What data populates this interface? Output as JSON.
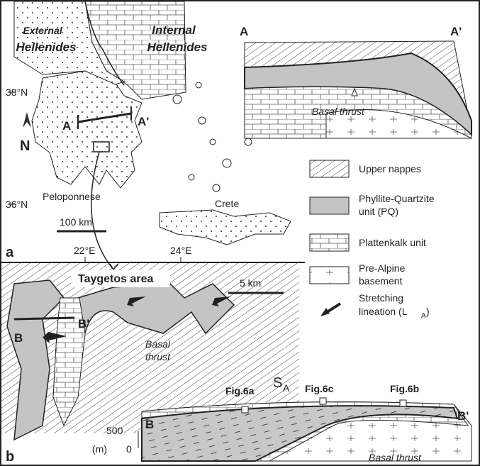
{
  "map_a": {
    "external": [
      "External",
      "Hellenides"
    ],
    "internal": [
      "Internal",
      "Hellenides"
    ],
    "lat_38": "38°N",
    "lat_36": "36°N",
    "north": "N",
    "section_start": "A",
    "section_end": "A'",
    "region": "Peloponnese",
    "scale": "100 km",
    "island": "Crete",
    "panel": "a",
    "lon_22": "22°E",
    "lon_24": "24°E"
  },
  "section_a": {
    "start": "A",
    "end": "A'",
    "thrust": "Basal thrust"
  },
  "legend": [
    {
      "label": [
        "Upper nappes"
      ]
    },
    {
      "label": [
        "Phyllite-Quartzite",
        "unit (PQ)"
      ]
    },
    {
      "label": [
        "Plattenkalk unit"
      ]
    },
    {
      "label": [
        "Pre-Alpine",
        "basement"
      ]
    },
    {
      "label": [
        "Stretching",
        "lineation (L"
      ],
      "sub": "A",
      "close": ")"
    }
  ],
  "map_b": {
    "area": "Taygetos area",
    "scale": "5 km",
    "thrust": [
      "Basal",
      "thrust"
    ],
    "section_start": "B",
    "section_end": "B'",
    "panel": "b"
  },
  "section_b": {
    "start": "B",
    "end": "B'",
    "foliation": "S",
    "foliation_sub": "A",
    "figs": [
      "Fig.6a",
      "Fig.6c",
      "Fig.6b"
    ],
    "elev": [
      "500",
      "0"
    ],
    "unit": "(m)",
    "thrust": "Basal thrust"
  }
}
